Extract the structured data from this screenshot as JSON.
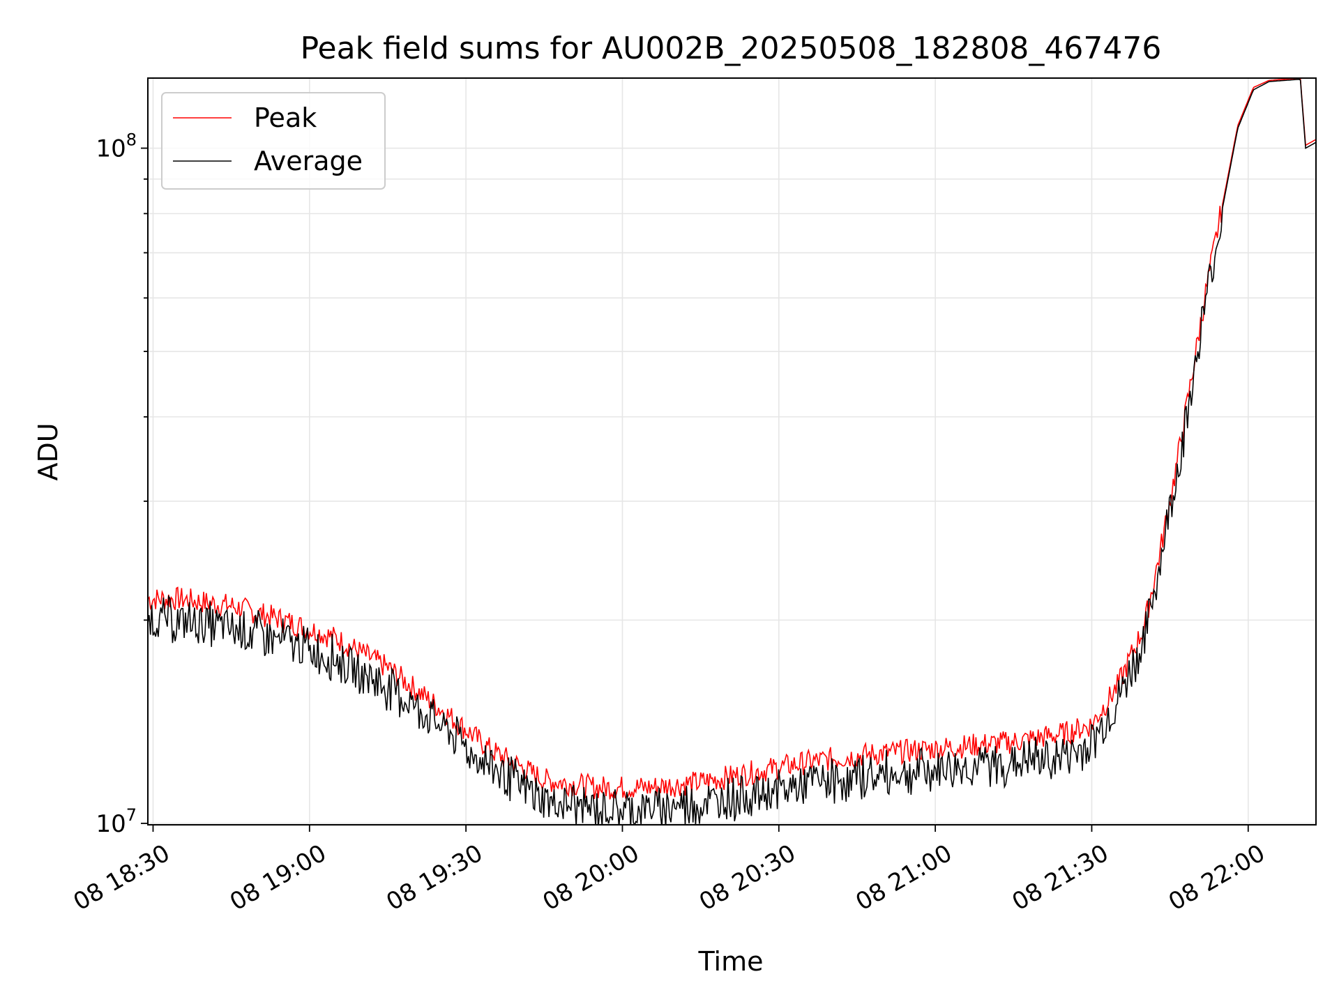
{
  "chart_data": {
    "type": "line",
    "title": "Peak field sums for AU002B_20250508_182808_467476",
    "xlabel": "Time",
    "ylabel": "ADU",
    "y_scale": "log",
    "ylim": [
      9950000,
      127000000
    ],
    "xlim": [
      "2025-05-08 18:29",
      "2025-05-08 22:13"
    ],
    "x_ticks": [
      {
        "t": "2025-05-08 18:30",
        "label": "08 18:30"
      },
      {
        "t": "2025-05-08 19:00",
        "label": "08 19:00"
      },
      {
        "t": "2025-05-08 19:30",
        "label": "08 19:30"
      },
      {
        "t": "2025-05-08 20:00",
        "label": "08 20:00"
      },
      {
        "t": "2025-05-08 20:30",
        "label": "08 20:30"
      },
      {
        "t": "2025-05-08 21:00",
        "label": "08 21:00"
      },
      {
        "t": "2025-05-08 21:30",
        "label": "08 21:30"
      },
      {
        "t": "2025-05-08 22:00",
        "label": "08 22:00"
      }
    ],
    "y_ticks_major": [
      {
        "value": 10000000,
        "base": "10",
        "exp": "7"
      },
      {
        "value": 100000000,
        "base": "10",
        "exp": "8"
      }
    ],
    "y_ticks_minor": [
      20000000,
      30000000,
      40000000,
      50000000,
      60000000,
      70000000,
      80000000,
      90000000
    ],
    "grid": true,
    "legend_position": "top-left",
    "series": [
      {
        "name": "Peak",
        "color": "#ff0000",
        "x": [
          "2025-05-08 18:29",
          "2025-05-08 18:35",
          "2025-05-08 18:45",
          "2025-05-08 18:55",
          "2025-05-08 19:05",
          "2025-05-08 19:15",
          "2025-05-08 19:25",
          "2025-05-08 19:35",
          "2025-05-08 19:45",
          "2025-05-08 19:55",
          "2025-05-08 20:05",
          "2025-05-08 20:15",
          "2025-05-08 20:25",
          "2025-05-08 20:35",
          "2025-05-08 20:45",
          "2025-05-08 20:55",
          "2025-05-08 21:05",
          "2025-05-08 21:15",
          "2025-05-08 21:25",
          "2025-05-08 21:30",
          "2025-05-08 21:35",
          "2025-05-08 21:40",
          "2025-05-08 21:43",
          "2025-05-08 21:46",
          "2025-05-08 21:49",
          "2025-05-08 21:52",
          "2025-05-08 21:55",
          "2025-05-08 21:58",
          "2025-05-08 22:01",
          "2025-05-08 22:04",
          "2025-05-08 22:07",
          "2025-05-08 22:10",
          "2025-05-08 22:11",
          "2025-05-08 22:13"
        ],
        "values": [
          21500000,
          21500000,
          21000000,
          20000000,
          18800000,
          17000000,
          14800000,
          12800000,
          11600000,
          11300000,
          11300000,
          11500000,
          11900000,
          12300000,
          12600000,
          12800000,
          13000000,
          13200000,
          13600000,
          14000000,
          16000000,
          19500000,
          25000000,
          33000000,
          45000000,
          62000000,
          82000000,
          108000000,
          123000000,
          126000000,
          126500000,
          127000000,
          101000000,
          103000000
        ]
      },
      {
        "name": "Average",
        "color": "#000000",
        "x": [
          "2025-05-08 18:29",
          "2025-05-08 18:35",
          "2025-05-08 18:45",
          "2025-05-08 18:55",
          "2025-05-08 19:05",
          "2025-05-08 19:15",
          "2025-05-08 19:25",
          "2025-05-08 19:35",
          "2025-05-08 19:45",
          "2025-05-08 19:55",
          "2025-05-08 20:05",
          "2025-05-08 20:15",
          "2025-05-08 20:25",
          "2025-05-08 20:35",
          "2025-05-08 20:45",
          "2025-05-08 20:55",
          "2025-05-08 21:05",
          "2025-05-08 21:15",
          "2025-05-08 21:25",
          "2025-05-08 21:30",
          "2025-05-08 21:35",
          "2025-05-08 21:40",
          "2025-05-08 21:43",
          "2025-05-08 21:46",
          "2025-05-08 21:49",
          "2025-05-08 21:52",
          "2025-05-08 21:55",
          "2025-05-08 21:58",
          "2025-05-08 22:01",
          "2025-05-08 22:04",
          "2025-05-08 22:07",
          "2025-05-08 22:10",
          "2025-05-08 22:11",
          "2025-05-08 22:13"
        ],
        "values": [
          20500000,
          20300000,
          19800000,
          19000000,
          17800000,
          16200000,
          14200000,
          12300000,
          11000000,
          10700000,
          10700000,
          10900000,
          11200000,
          11600000,
          11900000,
          12100000,
          12300000,
          12500000,
          12800000,
          13300000,
          15500000,
          19000000,
          24500000,
          32500000,
          44000000,
          61000000,
          81000000,
          107000000,
          122000000,
          125500000,
          126000000,
          126500000,
          100000000,
          102000000
        ]
      }
    ]
  }
}
